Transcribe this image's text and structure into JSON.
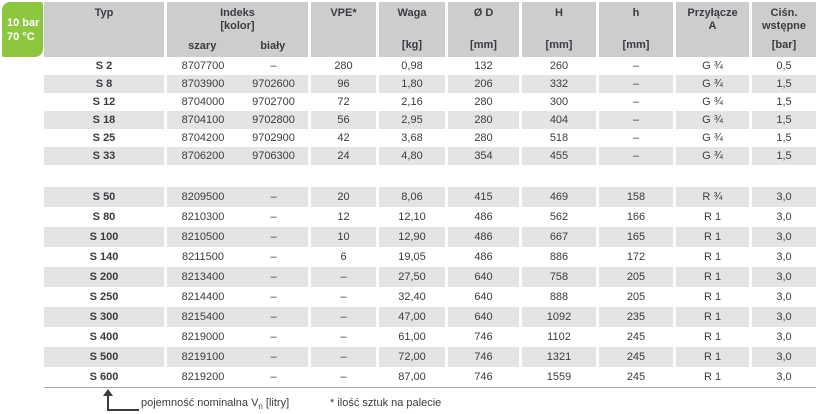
{
  "badge": {
    "line1": "10 bar",
    "line2": "70 °C"
  },
  "colors": {
    "accent_green": "#8dc63f",
    "header_gray": "#cdcdcd",
    "stripe_gray": "#e4e4e4",
    "text": "#3b3b42"
  },
  "table": {
    "header": {
      "typ": "Typ",
      "indeks": "Indeks",
      "kolor": "[kolor]",
      "szary": "szary",
      "bialy": "biały",
      "vpe": "VPE*",
      "waga": "Waga",
      "waga_unit": "[kg]",
      "od": "Ø D",
      "od_unit": "[mm]",
      "h_upper": "H",
      "h_upper_unit": "[mm]",
      "h_lower": "h",
      "h_lower_unit": "[mm]",
      "przylacze": "Przyłącze",
      "przylacze_sub": "A",
      "cisn_1": "Ciśn.",
      "cisn_2": "wstępne",
      "cisn_unit": "[bar]"
    },
    "sections": [
      {
        "rows": [
          {
            "typ": "S 2",
            "szary": "8707700",
            "bialy": "–",
            "vpe": "280",
            "waga": "0,98",
            "od": "132",
            "H": "260",
            "h": "–",
            "przylacze": "G ¾",
            "cisn": "0,5"
          },
          {
            "typ": "S 8",
            "szary": "8703900",
            "bialy": "9702600",
            "vpe": "96",
            "waga": "1,80",
            "od": "206",
            "H": "332",
            "h": "–",
            "przylacze": "G ¾",
            "cisn": "1,5"
          },
          {
            "typ": "S 12",
            "szary": "8704000",
            "bialy": "9702700",
            "vpe": "72",
            "waga": "2,16",
            "od": "280",
            "H": "300",
            "h": "–",
            "przylacze": "G ¾",
            "cisn": "1,5"
          },
          {
            "typ": "S 18",
            "szary": "8704100",
            "bialy": "9702800",
            "vpe": "56",
            "waga": "2,95",
            "od": "280",
            "H": "404",
            "h": "–",
            "przylacze": "G ¾",
            "cisn": "1,5"
          },
          {
            "typ": "S 25",
            "szary": "8704200",
            "bialy": "9702900",
            "vpe": "42",
            "waga": "3,68",
            "od": "280",
            "H": "518",
            "h": "–",
            "przylacze": "G ¾",
            "cisn": "1,5"
          },
          {
            "typ": "S 33",
            "szary": "8706200",
            "bialy": "9706300",
            "vpe": "24",
            "waga": "4,80",
            "od": "354",
            "H": "455",
            "h": "–",
            "przylacze": "G ¾",
            "cisn": "1,5"
          }
        ]
      },
      {
        "rows": [
          {
            "typ": "S 50",
            "szary": "8209500",
            "bialy": "–",
            "vpe": "20",
            "waga": "8,06",
            "od": "415",
            "H": "469",
            "h": "158",
            "przylacze": "R ¾",
            "cisn": "3,0"
          },
          {
            "typ": "S 80",
            "szary": "8210300",
            "bialy": "–",
            "vpe": "12",
            "waga": "12,10",
            "od": "486",
            "H": "562",
            "h": "166",
            "przylacze": "R 1",
            "cisn": "3,0"
          },
          {
            "typ": "S 100",
            "szary": "8210500",
            "bialy": "–",
            "vpe": "10",
            "waga": "12,90",
            "od": "486",
            "H": "667",
            "h": "165",
            "przylacze": "R 1",
            "cisn": "3,0"
          },
          {
            "typ": "S 140",
            "szary": "8211500",
            "bialy": "–",
            "vpe": "6",
            "waga": "19,05",
            "od": "486",
            "H": "886",
            "h": "172",
            "przylacze": "R 1",
            "cisn": "3,0"
          },
          {
            "typ": "S 200",
            "szary": "8213400",
            "bialy": "–",
            "vpe": "–",
            "waga": "27,50",
            "od": "640",
            "H": "758",
            "h": "205",
            "przylacze": "R 1",
            "cisn": "3,0"
          },
          {
            "typ": "S 250",
            "szary": "8214400",
            "bialy": "–",
            "vpe": "–",
            "waga": "32,40",
            "od": "640",
            "H": "888",
            "h": "205",
            "przylacze": "R 1",
            "cisn": "3,0"
          },
          {
            "typ": "S 300",
            "szary": "8215400",
            "bialy": "–",
            "vpe": "–",
            "waga": "47,00",
            "od": "640",
            "H": "1092",
            "h": "235",
            "przylacze": "R 1",
            "cisn": "3,0"
          },
          {
            "typ": "S 400",
            "szary": "8219000",
            "bialy": "–",
            "vpe": "–",
            "waga": "61,00",
            "od": "746",
            "H": "1102",
            "h": "245",
            "przylacze": "R 1",
            "cisn": "3,0"
          },
          {
            "typ": "S 500",
            "szary": "8219100",
            "bialy": "–",
            "vpe": "–",
            "waga": "72,00",
            "od": "746",
            "H": "1321",
            "h": "245",
            "przylacze": "R 1",
            "cisn": "3,0"
          },
          {
            "typ": "S 600",
            "szary": "8219200",
            "bialy": "–",
            "vpe": "–",
            "waga": "87,00",
            "od": "746",
            "H": "1559",
            "h": "245",
            "przylacze": "R 1",
            "cisn": "3,0"
          }
        ]
      }
    ]
  },
  "footer": {
    "note_arrow_prefix": "pojemność nominalna V",
    "note_arrow_sub": "n",
    "note_arrow_suffix": " [litry]",
    "note_star": "* ilość sztuk na palecie"
  }
}
